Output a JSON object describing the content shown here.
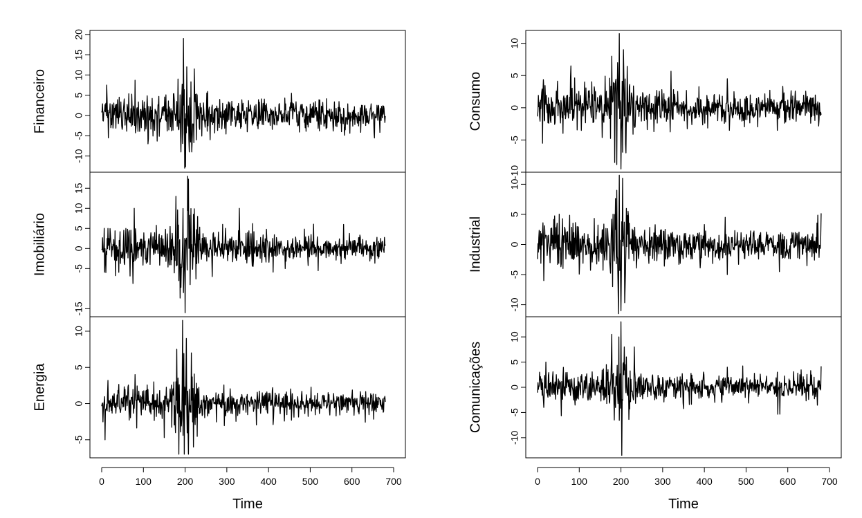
{
  "chart_data": {
    "type": "line",
    "x_axis_label": "Time",
    "x_ticks": [
      0,
      100,
      200,
      300,
      400,
      500,
      600,
      700
    ],
    "x_range": [
      0,
      680
    ],
    "columns": [
      {
        "panels": [
          {
            "ylabel": "Financeiro",
            "ylim": [
              -14,
              21
            ],
            "yticks": [
              -10,
              -5,
              0,
              5,
              10,
              15,
              20
            ],
            "series": {
              "noise_scale": 2.0,
              "spike_scale": 4.5,
              "spikes": [
                [
                  12,
                  7.5
                ],
                [
                  80,
                  8.7
                ],
                [
                  183,
                  9
                ],
                [
                  190,
                  -9
                ],
                [
                  196,
                  19
                ],
                [
                  199,
                  -13
                ],
                [
                  204,
                  12
                ],
                [
                  210,
                  -9
                ],
                [
                  216,
                  -9
                ],
                [
                  222,
                  11.5
                ],
                [
                  260,
                  -6
                ],
                [
                  455,
                  5.5
                ],
                [
                  575,
                  -4
                ]
              ]
            }
          },
          {
            "ylabel": "Imobiliário",
            "ylim": [
              -17,
              19
            ],
            "yticks": [
              -15,
              -5,
              0,
              5,
              10,
              15
            ],
            "series": {
              "noise_scale": 2.0,
              "spike_scale": 5.0,
              "spikes": [
                [
                  10,
                  -6
                ],
                [
                  78,
                  10
                ],
                [
                  178,
                  13
                ],
                [
                  185,
                  -8
                ],
                [
                  196,
                  -11
                ],
                [
                  200,
                  -16
                ],
                [
                  206,
                  18
                ],
                [
                  212,
                  -9
                ],
                [
                  230,
                  8
                ],
                [
                  265,
                  -7
                ],
                [
                  330,
                  10
                ],
                [
                  440,
                  -5
                ],
                [
                  580,
                  6
                ]
              ]
            }
          },
          {
            "ylabel": "Energia",
            "ylim": [
              -7.5,
              12
            ],
            "yticks": [
              -5,
              0,
              5,
              10
            ],
            "series": {
              "noise_scale": 0.9,
              "spike_scale": 3.5,
              "spikes": [
                [
                  8,
                  -5
                ],
                [
                  15,
                  3.2
                ],
                [
                  80,
                  4
                ],
                [
                  150,
                  -4.7
                ],
                [
                  180,
                  7.5
                ],
                [
                  185,
                  -7
                ],
                [
                  194,
                  11.5
                ],
                [
                  198,
                  -7
                ],
                [
                  203,
                  9
                ],
                [
                  208,
                  -7
                ],
                [
                  215,
                  7
                ],
                [
                  220,
                  -6
                ],
                [
                  455,
                  -2.3
                ]
              ]
            }
          }
        ]
      },
      {
        "panels": [
          {
            "ylabel": "Consumo",
            "ylim": [
              -10,
              12
            ],
            "yticks": [
              -10,
              -5,
              0,
              5,
              10
            ],
            "series": {
              "noise_scale": 1.3,
              "spike_scale": 4.0,
              "spikes": [
                [
                  12,
                  -5.5
                ],
                [
                  80,
                  6.5
                ],
                [
                  178,
                  8
                ],
                [
                  185,
                  -8.5
                ],
                [
                  192,
                  7
                ],
                [
                  196,
                  11.5
                ],
                [
                  200,
                  -9.5
                ],
                [
                  206,
                  9
                ],
                [
                  212,
                  -7
                ],
                [
                  455,
                  4.5
                ],
                [
                  460,
                  -3.5
                ],
                [
                  575,
                  -3.5
                ]
              ]
            }
          },
          {
            "ylabel": "Industrial",
            "ylim": [
              -12,
              12
            ],
            "yticks": [
              -10,
              -5,
              0,
              5,
              10
            ],
            "series": {
              "noise_scale": 1.5,
              "spike_scale": 4.5,
              "spikes": [
                [
                  15,
                  -6
                ],
                [
                  180,
                  -7
                ],
                [
                  190,
                  9
                ],
                [
                  194,
                  -11.5
                ],
                [
                  196,
                  11.5
                ],
                [
                  200,
                  -11
                ],
                [
                  204,
                  11
                ],
                [
                  210,
                  -7
                ],
                [
                  450,
                  4.5
                ],
                [
                  455,
                  -5
                ],
                [
                  580,
                  -4.5
                ]
              ]
            }
          },
          {
            "ylabel": "Comunicações",
            "ylim": [
              -14,
              14
            ],
            "yticks": [
              -10,
              -5,
              0,
              5,
              10
            ],
            "series": {
              "noise_scale": 1.3,
              "spike_scale": 4.0,
              "spikes": [
                [
                  5,
                  3
                ],
                [
                  15,
                  -4
                ],
                [
                  20,
                  5
                ],
                [
                  178,
                  10.5
                ],
                [
                  184,
                  -6.5
                ],
                [
                  195,
                  10
                ],
                [
                  200,
                  13
                ],
                [
                  202,
                  -13.5
                ],
                [
                  208,
                  8
                ],
                [
                  232,
                  8
                ],
                [
                  455,
                  4
                ],
                [
                  575,
                  3
                ]
              ]
            }
          }
        ]
      }
    ]
  }
}
